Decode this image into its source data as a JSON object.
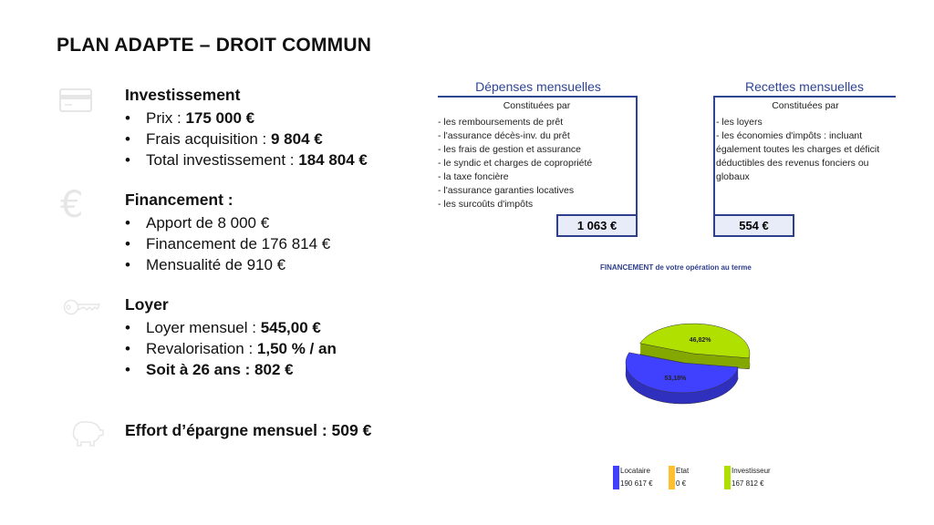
{
  "title": "PLAN ADAPTE – DROIT COMMUN",
  "investissement": {
    "heading": "Investissement",
    "items": [
      {
        "label": "Prix : ",
        "value": "175 000 €"
      },
      {
        "label": "Frais acquisition : ",
        "value": "9 804 €"
      },
      {
        "label": "Total investissement : ",
        "value": "184 804 €"
      }
    ]
  },
  "financement": {
    "heading": "Financement :",
    "items": [
      "Apport de 8 000 €",
      "Financement de 176 814 €",
      "Mensualité de 910 €"
    ]
  },
  "loyer": {
    "heading": "Loyer",
    "items": [
      {
        "label": "Loyer mensuel : ",
        "value": "545,00 €"
      },
      {
        "label": "Revalorisation : ",
        "value": "1,50 % / an"
      },
      {
        "label": "",
        "value": "Soit à 26 ans : 802 €"
      }
    ]
  },
  "effort": "Effort d’épargne mensuel : 509 €",
  "icons": [
    "credit-card-icon",
    "euro-icon",
    "key-icon",
    "piggy-bank-icon"
  ],
  "depenses": {
    "title": "Dépenses mensuelles",
    "subtitle": "Constituées par",
    "lines": [
      "- les remboursements de prêt",
      "- l'assurance décès-inv. du prêt",
      "- les frais de gestion et assurance",
      "- le syndic et charges de copropriété",
      "- la taxe foncière",
      "- l'assurance garanties locatives",
      "- les surcoûts d'impôts"
    ],
    "total": "1 063 €"
  },
  "recettes": {
    "title": "Recettes mensuelles",
    "subtitle": "Constituées par",
    "lines": [
      "- les loyers",
      "- les économies d'impôts : incluant",
      "également toutes les charges et déficit",
      "déductibles des revenus fonciers ou",
      "globaux"
    ],
    "total": "554 €"
  },
  "chart_data": {
    "type": "pie",
    "title": "FINANCEMENT de votre opération au terme",
    "series": [
      {
        "name": "Locataire",
        "amount": "190 617 €",
        "percent": 53.18,
        "label": "53,18%",
        "color": "#4040ff"
      },
      {
        "name": "Etat",
        "amount": "0 €",
        "percent": 0,
        "label": "",
        "color": "#ffc030"
      },
      {
        "name": "Investisseur",
        "amount": "167 812 €",
        "percent": 46.82,
        "label": "46,82%",
        "color": "#b0e000"
      }
    ],
    "style": "3d-exploded",
    "legend": "bottom"
  }
}
